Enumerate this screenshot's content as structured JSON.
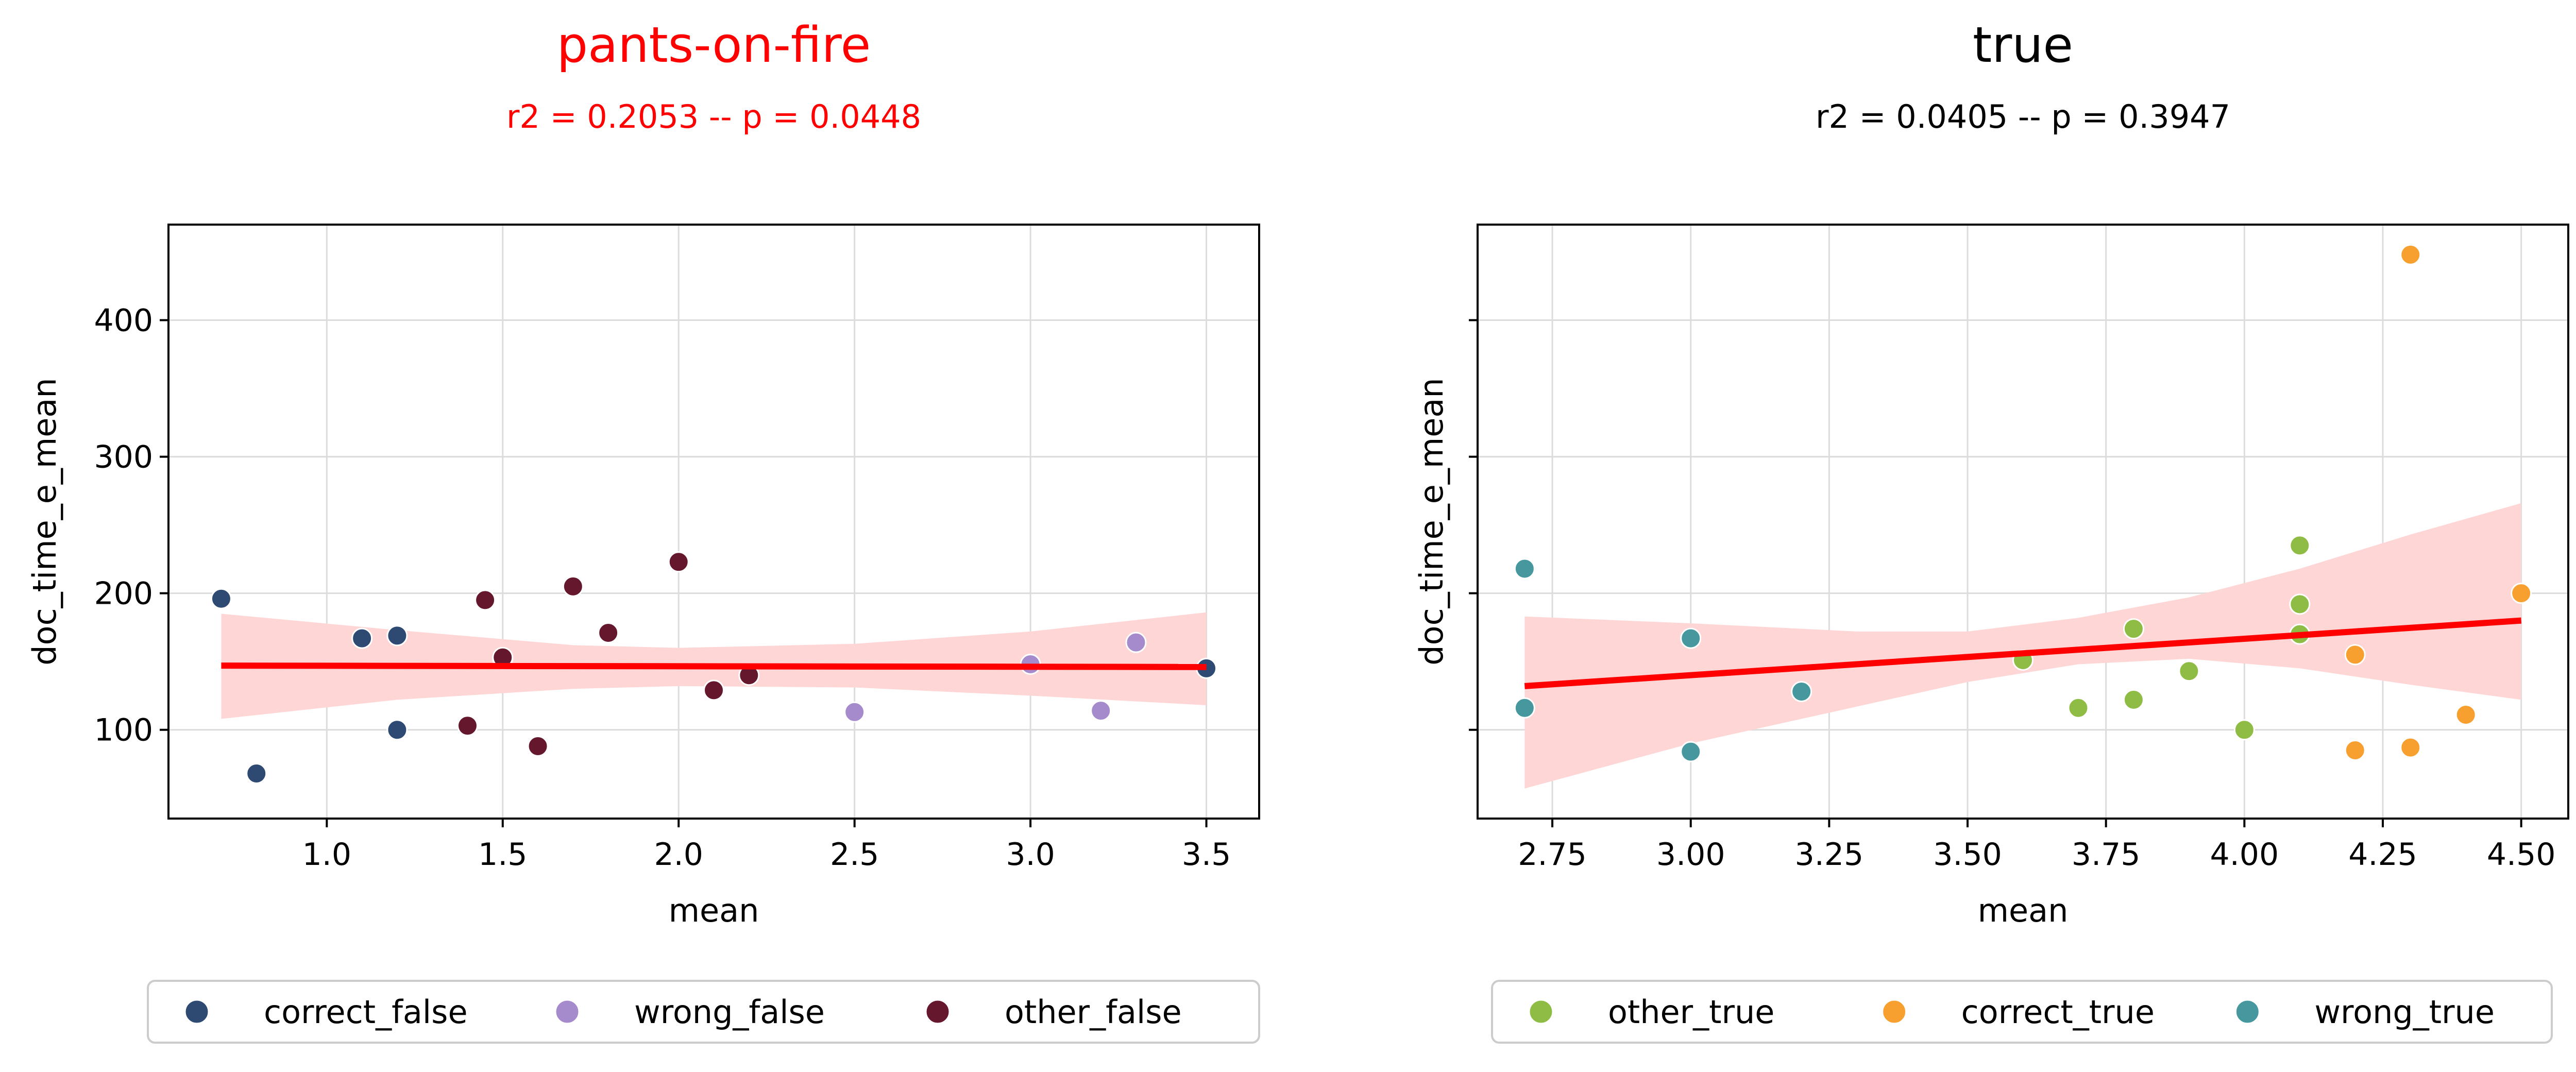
{
  "chart_data": [
    {
      "type": "scatter",
      "title": "pants-on-fire",
      "subtitle": "r2 = 0.2053 -- p = 0.0448",
      "title_color": "#ff0000",
      "xlabel": "mean",
      "ylabel": "doc_time_e_mean",
      "xlim": [
        0.55,
        3.65
      ],
      "ylim": [
        35,
        470
      ],
      "xticks": [
        1.0,
        1.5,
        2.0,
        2.5,
        3.0,
        3.5
      ],
      "xtick_labels": [
        "1.0",
        "1.5",
        "2.0",
        "2.5",
        "3.0",
        "3.5"
      ],
      "yticks": [
        100,
        200,
        300,
        400
      ],
      "ytick_labels": [
        "100",
        "200",
        "300",
        "400"
      ],
      "grid": true,
      "legend_position": "bottom",
      "regression": {
        "x": [
          0.7,
          3.5
        ],
        "y": [
          147,
          146
        ],
        "band_x": [
          0.7,
          1.2,
          1.7,
          2.0,
          2.5,
          3.0,
          3.5
        ],
        "band_lower": [
          108,
          122,
          130,
          132,
          131,
          125,
          118
        ],
        "band_upper": [
          185,
          173,
          162,
          160,
          163,
          172,
          186
        ],
        "color": "#ff0000",
        "band_color": "#ffd6d6"
      },
      "series": [
        {
          "name": "correct_false",
          "color": "#2e4a72",
          "points": [
            [
              0.7,
              196
            ],
            [
              0.8,
              68
            ],
            [
              1.1,
              167
            ],
            [
              1.2,
              169
            ],
            [
              1.2,
              100
            ],
            [
              1.5,
              152
            ],
            [
              3.5,
              145
            ]
          ]
        },
        {
          "name": "wrong_false",
          "color": "#a58bcb",
          "points": [
            [
              2.5,
              113
            ],
            [
              3.0,
              148
            ],
            [
              3.2,
              114
            ],
            [
              3.3,
              164
            ]
          ]
        },
        {
          "name": "other_false",
          "color": "#65182d",
          "points": [
            [
              1.4,
              103
            ],
            [
              1.45,
              195
            ],
            [
              1.5,
              153
            ],
            [
              1.6,
              88
            ],
            [
              1.7,
              205
            ],
            [
              1.8,
              171
            ],
            [
              2.0,
              223
            ],
            [
              2.1,
              129
            ],
            [
              2.2,
              140
            ]
          ]
        }
      ]
    },
    {
      "type": "scatter",
      "title": "true",
      "subtitle": "r2 = 0.0405 -- p = 0.3947",
      "title_color": "#000000",
      "xlabel": "mean",
      "ylabel": "doc_time_e_mean",
      "xlim": [
        2.615,
        4.585
      ],
      "ylim": [
        35,
        470
      ],
      "xticks": [
        2.75,
        3.0,
        3.25,
        3.5,
        3.75,
        4.0,
        4.25,
        4.5
      ],
      "xtick_labels": [
        "2.75",
        "3.00",
        "3.25",
        "3.50",
        "3.75",
        "4.00",
        "4.25",
        "4.50"
      ],
      "yticks": [
        100,
        200,
        300,
        400
      ],
      "ytick_labels": [
        "",
        "",
        "",
        ""
      ],
      "grid": true,
      "legend_position": "bottom",
      "regression": {
        "x": [
          2.7,
          4.5
        ],
        "y": [
          132,
          180
        ],
        "band_x": [
          2.7,
          3.0,
          3.3,
          3.5,
          3.7,
          3.9,
          4.1,
          4.3,
          4.5
        ],
        "band_lower": [
          57,
          90,
          117,
          135,
          148,
          152,
          145,
          133,
          122
        ],
        "band_upper": [
          183,
          178,
          172,
          172,
          182,
          197,
          218,
          243,
          266
        ],
        "color": "#ff0000",
        "band_color": "#ffd6d6"
      },
      "series": [
        {
          "name": "other_true",
          "color": "#8fbc45",
          "points": [
            [
              3.6,
              151
            ],
            [
              3.7,
              116
            ],
            [
              3.8,
              174
            ],
            [
              3.8,
              122
            ],
            [
              3.9,
              143
            ],
            [
              4.0,
              100
            ],
            [
              4.1,
              235
            ],
            [
              4.1,
              192
            ],
            [
              4.1,
              170
            ]
          ]
        },
        {
          "name": "correct_true",
          "color": "#f7a030",
          "points": [
            [
              4.2,
              155
            ],
            [
              4.2,
              85
            ],
            [
              4.3,
              448
            ],
            [
              4.3,
              87
            ],
            [
              4.4,
              111
            ],
            [
              4.5,
              200
            ]
          ]
        },
        {
          "name": "wrong_true",
          "color": "#46979e",
          "points": [
            [
              2.7,
              218
            ],
            [
              2.7,
              116
            ],
            [
              3.0,
              167
            ],
            [
              3.0,
              84
            ],
            [
              3.2,
              128
            ]
          ]
        }
      ]
    }
  ]
}
